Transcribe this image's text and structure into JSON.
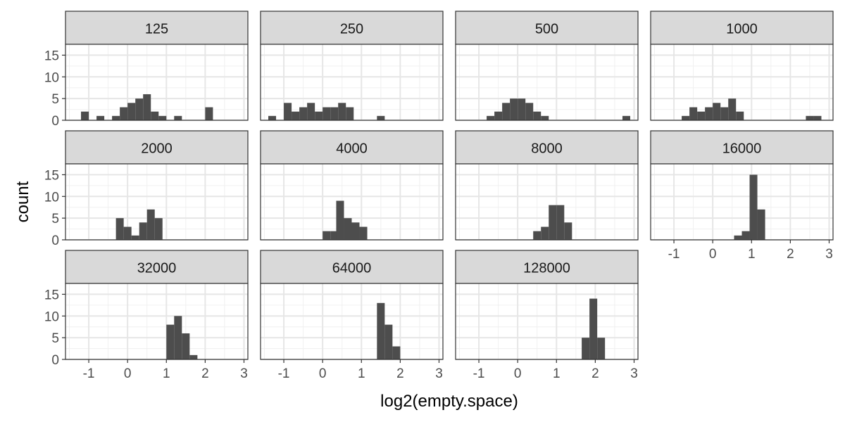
{
  "chart_data": {
    "type": "bar",
    "chart_kind": "faceted histogram",
    "xlabel": "log2(empty.space)",
    "ylabel": "count",
    "xlim": [
      -1.6,
      3.1
    ],
    "ylim": [
      0,
      17.5
    ],
    "x_ticks": [
      -1,
      0,
      1,
      2,
      3
    ],
    "y_ticks": [
      0,
      5,
      10,
      15
    ],
    "bin_width": 0.2,
    "bar_color": "#4d4d4d",
    "strip_color": "#d9d9d9",
    "grid": true,
    "facets": [
      {
        "label": "125",
        "bins": [
          {
            "x": -1.1,
            "count": 2
          },
          {
            "x": -0.7,
            "count": 1
          },
          {
            "x": -0.3,
            "count": 1
          },
          {
            "x": -0.1,
            "count": 3
          },
          {
            "x": 0.1,
            "count": 4
          },
          {
            "x": 0.3,
            "count": 5
          },
          {
            "x": 0.5,
            "count": 6
          },
          {
            "x": 0.7,
            "count": 2
          },
          {
            "x": 0.9,
            "count": 1
          },
          {
            "x": 1.3,
            "count": 1
          },
          {
            "x": 2.1,
            "count": 3
          }
        ]
      },
      {
        "label": "250",
        "bins": [
          {
            "x": -1.3,
            "count": 1
          },
          {
            "x": -0.9,
            "count": 4
          },
          {
            "x": -0.7,
            "count": 2
          },
          {
            "x": -0.5,
            "count": 3
          },
          {
            "x": -0.3,
            "count": 4
          },
          {
            "x": -0.1,
            "count": 2
          },
          {
            "x": 0.1,
            "count": 3
          },
          {
            "x": 0.3,
            "count": 3
          },
          {
            "x": 0.5,
            "count": 4
          },
          {
            "x": 0.7,
            "count": 3
          },
          {
            "x": 1.5,
            "count": 1
          }
        ]
      },
      {
        "label": "500",
        "bins": [
          {
            "x": -0.7,
            "count": 1
          },
          {
            "x": -0.5,
            "count": 2
          },
          {
            "x": -0.3,
            "count": 4
          },
          {
            "x": -0.1,
            "count": 5
          },
          {
            "x": 0.1,
            "count": 5
          },
          {
            "x": 0.3,
            "count": 4
          },
          {
            "x": 0.5,
            "count": 2
          },
          {
            "x": 0.7,
            "count": 1
          },
          {
            "x": 2.8,
            "count": 1
          }
        ]
      },
      {
        "label": "1000",
        "bins": [
          {
            "x": -0.7,
            "count": 1
          },
          {
            "x": -0.5,
            "count": 3
          },
          {
            "x": -0.3,
            "count": 2
          },
          {
            "x": -0.1,
            "count": 3
          },
          {
            "x": 0.1,
            "count": 4
          },
          {
            "x": 0.3,
            "count": 3
          },
          {
            "x": 0.5,
            "count": 5
          },
          {
            "x": 0.7,
            "count": 2
          },
          {
            "x": 2.5,
            "count": 1
          },
          {
            "x": 2.7,
            "count": 1
          }
        ]
      },
      {
        "label": "2000",
        "bins": [
          {
            "x": -0.2,
            "count": 5
          },
          {
            "x": 0.0,
            "count": 3
          },
          {
            "x": 0.2,
            "count": 1
          },
          {
            "x": 0.4,
            "count": 4
          },
          {
            "x": 0.6,
            "count": 7
          },
          {
            "x": 0.8,
            "count": 5
          }
        ]
      },
      {
        "label": "4000",
        "bins": [
          {
            "x": 0.1,
            "count": 2
          },
          {
            "x": 0.3,
            "count": 2
          },
          {
            "x": 0.45,
            "count": 9
          },
          {
            "x": 0.65,
            "count": 5
          },
          {
            "x": 0.85,
            "count": 4
          },
          {
            "x": 1.05,
            "count": 3
          }
        ]
      },
      {
        "label": "8000",
        "bins": [
          {
            "x": 0.5,
            "count": 2
          },
          {
            "x": 0.7,
            "count": 3
          },
          {
            "x": 0.9,
            "count": 8
          },
          {
            "x": 1.1,
            "count": 8
          },
          {
            "x": 1.3,
            "count": 4
          }
        ]
      },
      {
        "label": "16000",
        "bins": [
          {
            "x": 0.65,
            "count": 1
          },
          {
            "x": 0.85,
            "count": 2
          },
          {
            "x": 1.05,
            "count": 15
          },
          {
            "x": 1.25,
            "count": 7
          }
        ]
      },
      {
        "label": "32000",
        "bins": [
          {
            "x": 1.1,
            "count": 8
          },
          {
            "x": 1.3,
            "count": 10
          },
          {
            "x": 1.5,
            "count": 6
          },
          {
            "x": 1.7,
            "count": 1
          }
        ]
      },
      {
        "label": "64000",
        "bins": [
          {
            "x": 1.5,
            "count": 13
          },
          {
            "x": 1.7,
            "count": 8
          },
          {
            "x": 1.9,
            "count": 3
          }
        ]
      },
      {
        "label": "128000",
        "bins": [
          {
            "x": 1.75,
            "count": 5
          },
          {
            "x": 1.95,
            "count": 14
          },
          {
            "x": 2.15,
            "count": 5
          }
        ]
      }
    ]
  }
}
